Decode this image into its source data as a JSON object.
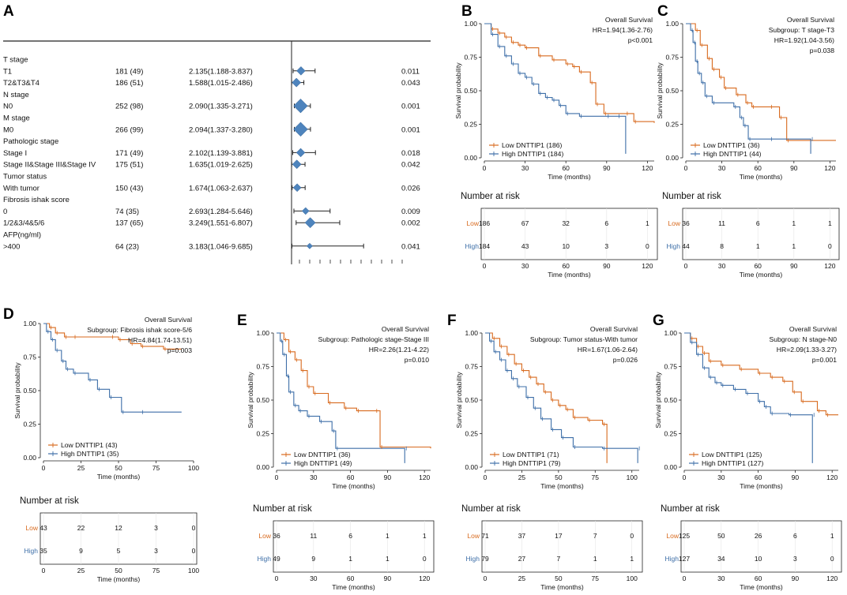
{
  "colors": {
    "low": "#D86A1E",
    "high": "#3E6FA8",
    "forest": "#4E84BD"
  },
  "common": {
    "ylabel": "Survival probability",
    "xlabel": "Time (months)",
    "risk_title": "Number at risk",
    "risk_low": "Low",
    "risk_high": "High",
    "title": "Overall Survival"
  },
  "forest": {
    "label": "A",
    "rows": [
      {
        "label": "T stage",
        "n": "",
        "hr": "",
        "p": "",
        "header": true
      },
      {
        "label": "T1",
        "n": "181 (49)",
        "hr": "2.135(1.188-3.837)",
        "p": "0.011",
        "est": 2.135,
        "lo": 1.188,
        "hi": 3.837,
        "w": 0.49
      },
      {
        "label": "T2&T3&T4",
        "n": "186 (51)",
        "hr": "1.588(1.015-2.486)",
        "p": "0.043",
        "est": 1.588,
        "lo": 1.015,
        "hi": 2.486,
        "w": 0.51
      },
      {
        "label": "N stage",
        "n": "",
        "hr": "",
        "p": "",
        "header": true
      },
      {
        "label": "N0",
        "n": "252 (98)",
        "hr": "2.090(1.335-3.271)",
        "p": "0.001",
        "est": 2.09,
        "lo": 1.335,
        "hi": 3.271,
        "w": 0.98
      },
      {
        "label": "M stage",
        "n": "",
        "hr": "",
        "p": "",
        "header": true
      },
      {
        "label": "M0",
        "n": "266 (99)",
        "hr": "2.094(1.337-3.280)",
        "p": "0.001",
        "est": 2.094,
        "lo": 1.337,
        "hi": 3.28,
        "w": 0.99
      },
      {
        "label": "Pathologic stage",
        "n": "",
        "hr": "",
        "p": "",
        "header": true
      },
      {
        "label": "Stage I",
        "n": "171 (49)",
        "hr": "2.102(1.139-3.881)",
        "p": "0.018",
        "est": 2.102,
        "lo": 1.139,
        "hi": 3.881,
        "w": 0.49
      },
      {
        "label": "Stage II&Stage III&Stage IV",
        "n": "175 (51)",
        "hr": "1.635(1.019-2.625)",
        "p": "0.042",
        "est": 1.635,
        "lo": 1.019,
        "hi": 2.625,
        "w": 0.51
      },
      {
        "label": "Tumor status",
        "n": "",
        "hr": "",
        "p": "",
        "header": true
      },
      {
        "label": "With tumor",
        "n": "150 (43)",
        "hr": "1.674(1.063-2.637)",
        "p": "0.026",
        "est": 1.674,
        "lo": 1.063,
        "hi": 2.637,
        "w": 0.43
      },
      {
        "label": "Fibrosis ishak score",
        "n": "",
        "hr": "",
        "p": "",
        "header": true
      },
      {
        "label": "0",
        "n": "74 (35)",
        "hr": "2.693(1.284-5.646)",
        "p": "0.009",
        "est": 2.693,
        "lo": 1.284,
        "hi": 5.646,
        "w": 0.35
      },
      {
        "label": "1/2&3/4&5/6",
        "n": "137 (65)",
        "hr": "3.249(1.551-6.807)",
        "p": "0.002",
        "est": 3.249,
        "lo": 1.551,
        "hi": 6.807,
        "w": 0.65
      },
      {
        "label": "AFP(ng/ml)",
        "n": "",
        "hr": "",
        "p": "",
        "header": true
      },
      {
        "label": ">400",
        "n": "64 (23)",
        "hr": "3.183(1.046-9.685)",
        "p": "0.041",
        "est": 3.183,
        "lo": 1.046,
        "hi": 9.685,
        "w": 0.23
      }
    ]
  },
  "chart_data": [
    {
      "type": "km",
      "label": "B",
      "title": "Overall Survival",
      "subgroup": "",
      "hr": "HR=1.94(1.36-2.76)",
      "p": "p<0.001",
      "xmax": 125,
      "xticks": [
        0,
        30,
        60,
        90,
        120
      ],
      "low": {
        "legend": "Low DNTTIP1 (186)",
        "pts": [
          [
            0,
            1
          ],
          [
            5,
            0.96
          ],
          [
            10,
            0.93
          ],
          [
            15,
            0.9
          ],
          [
            20,
            0.86
          ],
          [
            25,
            0.84
          ],
          [
            30,
            0.82
          ],
          [
            40,
            0.76
          ],
          [
            50,
            0.73
          ],
          [
            60,
            0.7
          ],
          [
            65,
            0.68
          ],
          [
            70,
            0.64
          ],
          [
            78,
            0.56
          ],
          [
            82,
            0.4
          ],
          [
            88,
            0.33
          ],
          [
            104,
            0.33
          ],
          [
            110,
            0.27
          ],
          [
            125,
            0.26
          ]
        ]
      },
      "high": {
        "legend": "High DNTTIP1 (184)",
        "pts": [
          [
            0,
            1
          ],
          [
            5,
            0.92
          ],
          [
            10,
            0.83
          ],
          [
            15,
            0.76
          ],
          [
            20,
            0.7
          ],
          [
            25,
            0.63
          ],
          [
            30,
            0.6
          ],
          [
            35,
            0.55
          ],
          [
            40,
            0.48
          ],
          [
            45,
            0.45
          ],
          [
            50,
            0.43
          ],
          [
            55,
            0.39
          ],
          [
            60,
            0.33
          ],
          [
            70,
            0.31
          ],
          [
            90,
            0.31
          ],
          [
            98,
            0.31
          ],
          [
            104,
            0.03
          ]
        ]
      },
      "risk_low": [
        "186",
        "67",
        "32",
        "6",
        "1"
      ],
      "risk_high": [
        "184",
        "43",
        "10",
        "3",
        "0"
      ]
    },
    {
      "type": "km",
      "label": "C",
      "title": "Overall Survival",
      "subgroup": "Subgroup: T stage-T3",
      "hr": "HR=1.92(1.04-3.56)",
      "p": "p=0.038",
      "xmax": 125,
      "xticks": [
        0,
        30,
        60,
        90,
        120
      ],
      "low": {
        "legend": "Low DNTTIP1 (36)",
        "pts": [
          [
            0,
            1
          ],
          [
            8,
            0.95
          ],
          [
            12,
            0.84
          ],
          [
            18,
            0.74
          ],
          [
            22,
            0.66
          ],
          [
            28,
            0.6
          ],
          [
            32,
            0.52
          ],
          [
            42,
            0.47
          ],
          [
            50,
            0.41
          ],
          [
            55,
            0.38
          ],
          [
            70,
            0.38
          ],
          [
            78,
            0.3
          ],
          [
            84,
            0.13
          ],
          [
            125,
            0.13
          ]
        ]
      },
      "high": {
        "legend": "High DNTTIP1 (44)",
        "pts": [
          [
            0,
            1
          ],
          [
            4,
            0.95
          ],
          [
            6,
            0.86
          ],
          [
            8,
            0.72
          ],
          [
            10,
            0.63
          ],
          [
            13,
            0.56
          ],
          [
            16,
            0.46
          ],
          [
            22,
            0.41
          ],
          [
            40,
            0.38
          ],
          [
            45,
            0.3
          ],
          [
            48,
            0.24
          ],
          [
            52,
            0.14
          ],
          [
            70,
            0.14
          ],
          [
            104,
            0.14
          ],
          [
            104,
            0.03
          ]
        ]
      },
      "risk_low": [
        "36",
        "11",
        "6",
        "1",
        "1"
      ],
      "risk_high": [
        "44",
        "8",
        "1",
        "1",
        "0"
      ]
    },
    {
      "type": "km",
      "label": "D",
      "title": "Overall Survival",
      "subgroup": "Subgroup: Fibrosis ishak score-5/6",
      "hr": "HR=4.84(1.74-13.51)",
      "p": "p=0.003",
      "xmax": 100,
      "xticks": [
        0,
        25,
        50,
        75,
        100
      ],
      "low": {
        "legend": "Low DNTTIP1 (43)",
        "pts": [
          [
            0,
            1
          ],
          [
            4,
            0.97
          ],
          [
            8,
            0.93
          ],
          [
            14,
            0.9
          ],
          [
            20,
            0.9
          ],
          [
            45,
            0.9
          ],
          [
            50,
            0.88
          ],
          [
            58,
            0.85
          ],
          [
            65,
            0.83
          ],
          [
            80,
            0.81
          ],
          [
            92,
            0.81
          ]
        ]
      },
      "high": {
        "legend": "High DNTTIP1 (35)",
        "pts": [
          [
            0,
            1
          ],
          [
            2,
            0.94
          ],
          [
            5,
            0.88
          ],
          [
            8,
            0.8
          ],
          [
            12,
            0.72
          ],
          [
            15,
            0.66
          ],
          [
            20,
            0.63
          ],
          [
            30,
            0.58
          ],
          [
            36,
            0.51
          ],
          [
            44,
            0.45
          ],
          [
            52,
            0.34
          ],
          [
            65,
            0.34
          ],
          [
            92,
            0.34
          ]
        ]
      },
      "risk_low": [
        "43",
        "22",
        "12",
        "3",
        "0"
      ],
      "risk_high": [
        "35",
        "9",
        "5",
        "3",
        "0"
      ]
    },
    {
      "type": "km",
      "label": "E",
      "title": "Overall Survival",
      "subgroup": "Subgroup: Pathologic stage-Stage III",
      "hr": "HR=2.26(1.21-4.22)",
      "p": "p=0.010",
      "xmax": 125,
      "xticks": [
        0,
        30,
        60,
        90,
        120
      ],
      "low": {
        "legend": "Low DNTTIP1 (36)",
        "pts": [
          [
            0,
            1
          ],
          [
            6,
            0.95
          ],
          [
            10,
            0.86
          ],
          [
            15,
            0.8
          ],
          [
            20,
            0.72
          ],
          [
            25,
            0.6
          ],
          [
            30,
            0.55
          ],
          [
            42,
            0.48
          ],
          [
            55,
            0.44
          ],
          [
            65,
            0.42
          ],
          [
            80,
            0.42
          ],
          [
            84,
            0.15
          ],
          [
            125,
            0.14
          ]
        ]
      },
      "high": {
        "legend": "High DNTTIP1 (49)",
        "pts": [
          [
            0,
            1
          ],
          [
            3,
            0.94
          ],
          [
            5,
            0.84
          ],
          [
            8,
            0.68
          ],
          [
            10,
            0.56
          ],
          [
            14,
            0.46
          ],
          [
            18,
            0.42
          ],
          [
            25,
            0.38
          ],
          [
            35,
            0.34
          ],
          [
            45,
            0.27
          ],
          [
            48,
            0.14
          ],
          [
            104,
            0.14
          ],
          [
            104,
            0.03
          ]
        ]
      },
      "risk_low": [
        "36",
        "11",
        "6",
        "1",
        "1"
      ],
      "risk_high": [
        "49",
        "9",
        "1",
        "1",
        "0"
      ]
    },
    {
      "type": "km",
      "label": "F",
      "title": "Overall Survival",
      "subgroup": "Subgroup: Tumor status-With tumor",
      "hr": "HR=1.67(1.06-2.64)",
      "p": "p=0.026",
      "xmax": 105,
      "xticks": [
        0,
        25,
        50,
        75,
        100
      ],
      "low": {
        "legend": "Low DNTTIP1 (71)",
        "pts": [
          [
            0,
            1
          ],
          [
            5,
            0.96
          ],
          [
            10,
            0.9
          ],
          [
            15,
            0.84
          ],
          [
            20,
            0.77
          ],
          [
            25,
            0.72
          ],
          [
            30,
            0.67
          ],
          [
            35,
            0.62
          ],
          [
            40,
            0.56
          ],
          [
            45,
            0.5
          ],
          [
            50,
            0.46
          ],
          [
            55,
            0.43
          ],
          [
            60,
            0.37
          ],
          [
            70,
            0.35
          ],
          [
            80,
            0.32
          ],
          [
            83,
            0.03
          ]
        ]
      },
      "high": {
        "legend": "High DNTTIP1 (79)",
        "pts": [
          [
            0,
            1
          ],
          [
            3,
            0.94
          ],
          [
            6,
            0.86
          ],
          [
            10,
            0.8
          ],
          [
            14,
            0.72
          ],
          [
            18,
            0.66
          ],
          [
            22,
            0.6
          ],
          [
            28,
            0.52
          ],
          [
            33,
            0.44
          ],
          [
            38,
            0.36
          ],
          [
            45,
            0.28
          ],
          [
            52,
            0.22
          ],
          [
            60,
            0.15
          ],
          [
            80,
            0.14
          ],
          [
            104,
            0.14
          ],
          [
            104,
            0.03
          ]
        ]
      },
      "risk_low": [
        "71",
        "37",
        "17",
        "7",
        "0"
      ],
      "risk_high": [
        "79",
        "27",
        "7",
        "1",
        "1"
      ]
    },
    {
      "type": "km",
      "label": "G",
      "title": "Overall Survival",
      "subgroup": "Subgroup: N stage-N0",
      "hr": "HR=2.09(1.33-3.27)",
      "p": "p=0.001",
      "xmax": 125,
      "xticks": [
        0,
        30,
        60,
        90,
        120
      ],
      "low": {
        "legend": "Low DNTTIP1 (125)",
        "pts": [
          [
            0,
            1
          ],
          [
            5,
            0.96
          ],
          [
            10,
            0.9
          ],
          [
            15,
            0.85
          ],
          [
            20,
            0.79
          ],
          [
            30,
            0.76
          ],
          [
            45,
            0.73
          ],
          [
            60,
            0.7
          ],
          [
            70,
            0.67
          ],
          [
            80,
            0.64
          ],
          [
            88,
            0.56
          ],
          [
            95,
            0.49
          ],
          [
            108,
            0.42
          ],
          [
            115,
            0.39
          ],
          [
            125,
            0.39
          ]
        ]
      },
      "high": {
        "legend": "High DNTTIP1 (127)",
        "pts": [
          [
            0,
            1
          ],
          [
            5,
            0.93
          ],
          [
            10,
            0.84
          ],
          [
            15,
            0.74
          ],
          [
            20,
            0.67
          ],
          [
            25,
            0.63
          ],
          [
            30,
            0.61
          ],
          [
            40,
            0.58
          ],
          [
            50,
            0.55
          ],
          [
            60,
            0.49
          ],
          [
            65,
            0.45
          ],
          [
            70,
            0.4
          ],
          [
            85,
            0.39
          ],
          [
            104,
            0.39
          ],
          [
            104,
            0.03
          ]
        ]
      },
      "risk_low": [
        "125",
        "50",
        "26",
        "6",
        "1"
      ],
      "risk_high": [
        "127",
        "34",
        "10",
        "3",
        "0"
      ]
    }
  ]
}
